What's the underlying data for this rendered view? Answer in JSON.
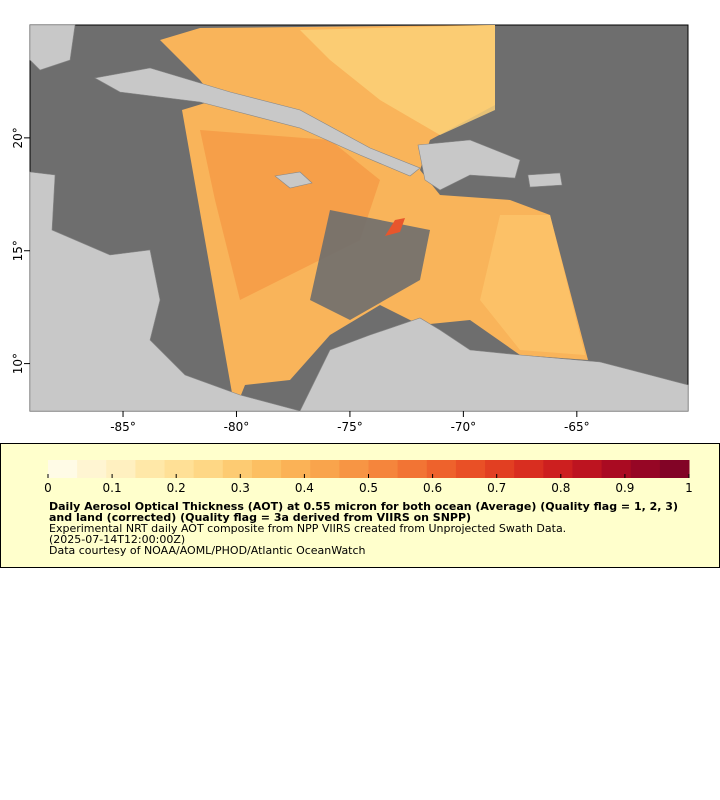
{
  "chart_data": {
    "type": "map",
    "xlim": [
      -89.1,
      -60.1
    ],
    "ylim": [
      7.9,
      25.0
    ],
    "xticks": [
      {
        "value": -85,
        "label": "-85°"
      },
      {
        "value": -80,
        "label": "-80°"
      },
      {
        "value": -75,
        "label": "-75°"
      },
      {
        "value": -70,
        "label": "-70°"
      },
      {
        "value": -65,
        "label": "-65°"
      }
    ],
    "yticks": [
      {
        "value": 10,
        "label": "10°"
      },
      {
        "value": 15,
        "label": "15°"
      },
      {
        "value": 20,
        "label": "20°"
      }
    ],
    "colorbar": {
      "clim": [
        0,
        1
      ],
      "ticks": [
        0,
        0.1,
        0.2,
        0.3,
        0.4,
        0.5,
        0.6,
        0.7,
        0.8,
        0.9,
        1
      ],
      "colors": [
        "#fffbe6",
        "#fff5d2",
        "#fff0c0",
        "#ffe8a8",
        "#ffe096",
        "#fed785",
        "#fdcb72",
        "#fcbf62",
        "#fbb256",
        "#f9a44c",
        "#f79544",
        "#f5853c",
        "#f27434",
        "#ee622c",
        "#e95026",
        "#e23f22",
        "#d92e20",
        "#cd1f1f",
        "#bd1420",
        "#aa0b22",
        "#960625",
        "#820426"
      ]
    },
    "title": "Daily Aerosol Optical Thickness (AOT) at 0.55 micron for both ocean (Average) (Quality flag = 1, 2, 3) and land (corrected) (Quality flag = 3a derived from VIIRS on SNPP)",
    "subtitle": "Experimental NRT daily AOT composite from NPP VIIRS created from Unprojected Swath Data.",
    "date": "(2025-07-14T12:00:00Z)",
    "credit": "Data courtesy of NOAA/AOML/PHOD/Atlantic OceanWatch"
  }
}
